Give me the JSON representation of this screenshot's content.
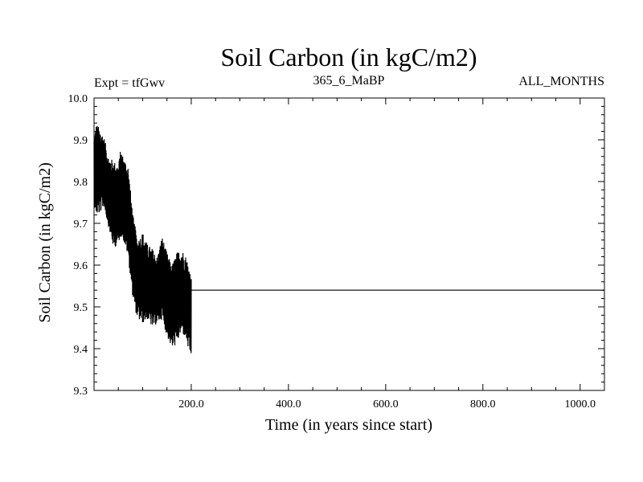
{
  "chart_data": {
    "type": "line",
    "title": "Soil Carbon (in kgC/m2)",
    "subtitle_left": "Expt = tfGwv",
    "subtitle_center": "365_6_MaBP",
    "subtitle_right": "ALL_MONTHS",
    "xlabel": "Time (in years since start)",
    "ylabel": "Soil Carbon (in kgC/m2)",
    "xlim": [
      0,
      1050
    ],
    "ylim": [
      9.3,
      10.0
    ],
    "x_ticks": [
      200,
      400,
      600,
      800,
      1000
    ],
    "x_tick_labels": [
      "200.0",
      "400.0",
      "600.0",
      "800.0",
      "1000.0"
    ],
    "y_ticks": [
      9.3,
      9.4,
      9.5,
      9.6,
      9.7,
      9.8,
      9.9,
      10.0
    ],
    "y_tick_labels": [
      "9.3",
      "9.4",
      "9.5",
      "9.6",
      "9.7",
      "9.8",
      "9.9",
      "10.0"
    ],
    "series": [
      {
        "name": "Soil Carbon",
        "color": "#000000",
        "envelope_x": [
          0,
          5,
          10,
          20,
          30,
          40,
          50,
          55,
          60,
          70,
          80,
          85,
          90,
          100,
          110,
          120,
          130,
          140,
          150,
          160,
          170,
          180,
          190,
          195,
          200
        ],
        "envelope_max": [
          9.91,
          9.94,
          9.93,
          9.91,
          9.86,
          9.85,
          9.84,
          9.88,
          9.86,
          9.84,
          9.72,
          9.69,
          9.66,
          9.68,
          9.65,
          9.64,
          9.62,
          9.67,
          9.63,
          9.6,
          9.63,
          9.64,
          9.62,
          9.6,
          9.57
        ],
        "envelope_min": [
          9.74,
          9.72,
          9.72,
          9.74,
          9.69,
          9.64,
          9.65,
          9.67,
          9.66,
          9.62,
          9.52,
          9.49,
          9.47,
          9.46,
          9.47,
          9.45,
          9.46,
          9.47,
          9.43,
          9.4,
          9.41,
          9.44,
          9.42,
          9.39,
          9.38
        ],
        "flat_value": 9.54,
        "flat_range": [
          200,
          1050
        ]
      }
    ]
  }
}
